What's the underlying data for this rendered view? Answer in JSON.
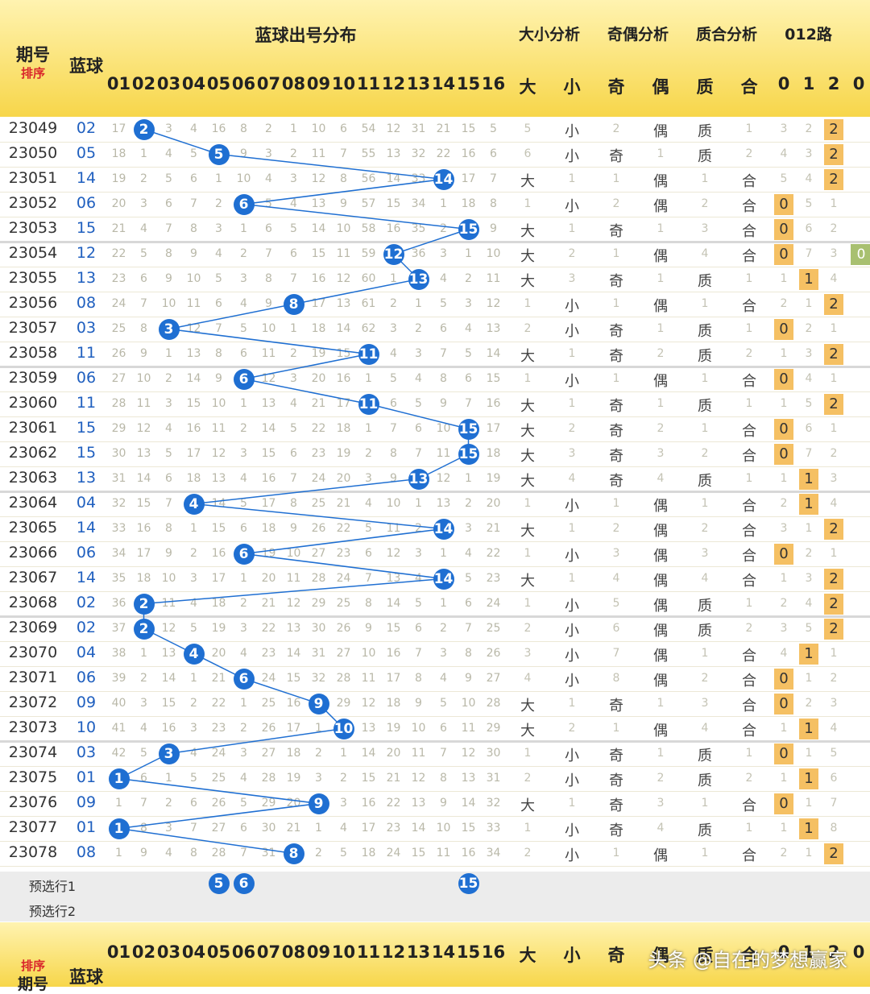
{
  "header": {
    "period_label": "期号",
    "sort_label": "排序",
    "blue_label": "蓝球",
    "distribution_label": "蓝球出号分布",
    "size_label": "大小分析",
    "odd_even_label": "奇偶分析",
    "prime_label": "质合分析",
    "road_label": "012路",
    "numbers": [
      "01",
      "02",
      "03",
      "04",
      "05",
      "06",
      "07",
      "08",
      "09",
      "10",
      "11",
      "12",
      "13",
      "14",
      "15",
      "16"
    ],
    "big": "大",
    "small": "小",
    "odd": "奇",
    "even": "偶",
    "prime": "质",
    "composite": "合",
    "road0": "0",
    "road1": "1",
    "road2": "2",
    "road0b": "0"
  },
  "rows": [
    {
      "period": "23049",
      "blue": "02",
      "miss": [
        "17",
        "",
        "3",
        "4",
        "16",
        "8",
        "2",
        "1",
        "10",
        "6",
        "54",
        "12",
        "31",
        "21",
        "15",
        "5"
      ],
      "size": [
        "5",
        "小"
      ],
      "oe": [
        "2",
        "偶"
      ],
      "pc": [
        "质",
        "1"
      ],
      "road": [
        "3",
        "2",
        "2"
      ]
    },
    {
      "period": "23050",
      "blue": "05",
      "miss": [
        "18",
        "1",
        "4",
        "5",
        "",
        "9",
        "3",
        "2",
        "11",
        "7",
        "55",
        "13",
        "32",
        "22",
        "16",
        "6"
      ],
      "size": [
        "6",
        "小"
      ],
      "oe": [
        "奇",
        "1"
      ],
      "pc": [
        "质",
        "2"
      ],
      "road": [
        "4",
        "3",
        "2"
      ]
    },
    {
      "period": "23051",
      "blue": "14",
      "miss": [
        "19",
        "2",
        "5",
        "6",
        "1",
        "10",
        "4",
        "3",
        "12",
        "8",
        "56",
        "14",
        "33",
        "",
        "17",
        "7"
      ],
      "size": [
        "大",
        "1"
      ],
      "oe": [
        "1",
        "偶"
      ],
      "pc": [
        "1",
        "合"
      ],
      "road": [
        "5",
        "4",
        "2"
      ]
    },
    {
      "period": "23052",
      "blue": "06",
      "miss": [
        "20",
        "3",
        "6",
        "7",
        "2",
        "",
        "5",
        "4",
        "13",
        "9",
        "57",
        "15",
        "34",
        "1",
        "18",
        "8"
      ],
      "size": [
        "1",
        "小"
      ],
      "oe": [
        "2",
        "偶"
      ],
      "pc": [
        "2",
        "合"
      ],
      "road": [
        "0",
        "5",
        "1"
      ]
    },
    {
      "period": "23053",
      "blue": "15",
      "miss": [
        "21",
        "4",
        "7",
        "8",
        "3",
        "1",
        "6",
        "5",
        "14",
        "10",
        "58",
        "16",
        "35",
        "2",
        "",
        "9"
      ],
      "size": [
        "大",
        "1"
      ],
      "oe": [
        "奇",
        "1"
      ],
      "pc": [
        "3",
        "合"
      ],
      "road": [
        "0",
        "6",
        "2"
      ]
    },
    {
      "period": "23054",
      "blue": "12",
      "miss": [
        "22",
        "5",
        "8",
        "9",
        "4",
        "2",
        "7",
        "6",
        "15",
        "11",
        "59",
        "",
        "36",
        "3",
        "1",
        "10"
      ],
      "size": [
        "大",
        "2"
      ],
      "oe": [
        "1",
        "偶"
      ],
      "pc": [
        "4",
        "合"
      ],
      "road": [
        "0",
        "7",
        "3"
      ]
    },
    {
      "period": "23055",
      "blue": "13",
      "miss": [
        "23",
        "6",
        "9",
        "10",
        "5",
        "3",
        "8",
        "7",
        "16",
        "12",
        "60",
        "1",
        "",
        "4",
        "2",
        "11"
      ],
      "size": [
        "大",
        "3"
      ],
      "oe": [
        "奇",
        "1"
      ],
      "pc": [
        "质",
        "1"
      ],
      "road": [
        "1",
        "1",
        "4"
      ]
    },
    {
      "period": "23056",
      "blue": "08",
      "miss": [
        "24",
        "7",
        "10",
        "11",
        "6",
        "4",
        "9",
        "",
        "17",
        "13",
        "61",
        "2",
        "1",
        "5",
        "3",
        "12"
      ],
      "size": [
        "1",
        "小"
      ],
      "oe": [
        "1",
        "偶"
      ],
      "pc": [
        "1",
        "合"
      ],
      "road": [
        "2",
        "1",
        "2"
      ]
    },
    {
      "period": "23057",
      "blue": "03",
      "miss": [
        "25",
        "8",
        "",
        "12",
        "7",
        "5",
        "10",
        "1",
        "18",
        "14",
        "62",
        "3",
        "2",
        "6",
        "4",
        "13"
      ],
      "size": [
        "2",
        "小"
      ],
      "oe": [
        "奇",
        "1"
      ],
      "pc": [
        "质",
        "1"
      ],
      "road": [
        "0",
        "2",
        "1"
      ]
    },
    {
      "period": "23058",
      "blue": "11",
      "miss": [
        "26",
        "9",
        "1",
        "13",
        "8",
        "6",
        "11",
        "2",
        "19",
        "15",
        "",
        "4",
        "3",
        "7",
        "5",
        "14"
      ],
      "size": [
        "大",
        "1"
      ],
      "oe": [
        "奇",
        "2"
      ],
      "pc": [
        "质",
        "2"
      ],
      "road": [
        "1",
        "3",
        "2"
      ]
    },
    {
      "period": "23059",
      "blue": "06",
      "miss": [
        "27",
        "10",
        "2",
        "14",
        "9",
        "",
        "12",
        "3",
        "20",
        "16",
        "1",
        "5",
        "4",
        "8",
        "6",
        "15"
      ],
      "size": [
        "1",
        "小"
      ],
      "oe": [
        "1",
        "偶"
      ],
      "pc": [
        "1",
        "合"
      ],
      "road": [
        "0",
        "4",
        "1"
      ]
    },
    {
      "period": "23060",
      "blue": "11",
      "miss": [
        "28",
        "11",
        "3",
        "15",
        "10",
        "1",
        "13",
        "4",
        "21",
        "17",
        "",
        "6",
        "5",
        "9",
        "7",
        "16"
      ],
      "size": [
        "大",
        "1"
      ],
      "oe": [
        "奇",
        "1"
      ],
      "pc": [
        "质",
        "1"
      ],
      "road": [
        "1",
        "5",
        "2"
      ]
    },
    {
      "period": "23061",
      "blue": "15",
      "miss": [
        "29",
        "12",
        "4",
        "16",
        "11",
        "2",
        "14",
        "5",
        "22",
        "18",
        "1",
        "7",
        "6",
        "10",
        "",
        "17"
      ],
      "size": [
        "大",
        "2"
      ],
      "oe": [
        "奇",
        "2"
      ],
      "pc": [
        "1",
        "合"
      ],
      "road": [
        "0",
        "6",
        "1"
      ]
    },
    {
      "period": "23062",
      "blue": "15",
      "miss": [
        "30",
        "13",
        "5",
        "17",
        "12",
        "3",
        "15",
        "6",
        "23",
        "19",
        "2",
        "8",
        "7",
        "11",
        "",
        "18"
      ],
      "size": [
        "大",
        "3"
      ],
      "oe": [
        "奇",
        "3"
      ],
      "pc": [
        "2",
        "合"
      ],
      "road": [
        "0",
        "7",
        "2"
      ]
    },
    {
      "period": "23063",
      "blue": "13",
      "miss": [
        "31",
        "14",
        "6",
        "18",
        "13",
        "4",
        "16",
        "7",
        "24",
        "20",
        "3",
        "9",
        "",
        "12",
        "1",
        "19"
      ],
      "size": [
        "大",
        "4"
      ],
      "oe": [
        "奇",
        "4"
      ],
      "pc": [
        "质",
        "1"
      ],
      "road": [
        "1",
        "1",
        "3"
      ]
    },
    {
      "period": "23064",
      "blue": "04",
      "miss": [
        "32",
        "15",
        "7",
        "",
        "14",
        "5",
        "17",
        "8",
        "25",
        "21",
        "4",
        "10",
        "1",
        "13",
        "2",
        "20"
      ],
      "size": [
        "1",
        "小"
      ],
      "oe": [
        "1",
        "偶"
      ],
      "pc": [
        "1",
        "合"
      ],
      "road": [
        "2",
        "1",
        "4"
      ]
    },
    {
      "period": "23065",
      "blue": "14",
      "miss": [
        "33",
        "16",
        "8",
        "1",
        "15",
        "6",
        "18",
        "9",
        "26",
        "22",
        "5",
        "11",
        "2",
        "",
        "3",
        "21"
      ],
      "size": [
        "大",
        "1"
      ],
      "oe": [
        "2",
        "偶"
      ],
      "pc": [
        "2",
        "合"
      ],
      "road": [
        "3",
        "1",
        "2"
      ]
    },
    {
      "period": "23066",
      "blue": "06",
      "miss": [
        "34",
        "17",
        "9",
        "2",
        "16",
        "",
        "19",
        "10",
        "27",
        "23",
        "6",
        "12",
        "3",
        "1",
        "4",
        "22"
      ],
      "size": [
        "1",
        "小"
      ],
      "oe": [
        "3",
        "偶"
      ],
      "pc": [
        "3",
        "合"
      ],
      "road": [
        "0",
        "2",
        "1"
      ]
    },
    {
      "period": "23067",
      "blue": "14",
      "miss": [
        "35",
        "18",
        "10",
        "3",
        "17",
        "1",
        "20",
        "11",
        "28",
        "24",
        "7",
        "13",
        "4",
        "",
        "5",
        "23"
      ],
      "size": [
        "大",
        "1"
      ],
      "oe": [
        "4",
        "偶"
      ],
      "pc": [
        "4",
        "合"
      ],
      "road": [
        "1",
        "3",
        "2"
      ]
    },
    {
      "period": "23068",
      "blue": "02",
      "miss": [
        "36",
        "",
        "11",
        "4",
        "18",
        "2",
        "21",
        "12",
        "29",
        "25",
        "8",
        "14",
        "5",
        "1",
        "6",
        "24"
      ],
      "size": [
        "1",
        "小"
      ],
      "oe": [
        "5",
        "偶"
      ],
      "pc": [
        "质",
        "1"
      ],
      "road": [
        "2",
        "4",
        "2"
      ]
    },
    {
      "period": "23069",
      "blue": "02",
      "miss": [
        "37",
        "",
        "12",
        "5",
        "19",
        "3",
        "22",
        "13",
        "30",
        "26",
        "9",
        "15",
        "6",
        "2",
        "7",
        "25"
      ],
      "size": [
        "2",
        "小"
      ],
      "oe": [
        "6",
        "偶"
      ],
      "pc": [
        "质",
        "2"
      ],
      "road": [
        "3",
        "5",
        "2"
      ]
    },
    {
      "period": "23070",
      "blue": "04",
      "miss": [
        "38",
        "1",
        "13",
        "",
        "20",
        "4",
        "23",
        "14",
        "31",
        "27",
        "10",
        "16",
        "7",
        "3",
        "8",
        "26"
      ],
      "size": [
        "3",
        "小"
      ],
      "oe": [
        "7",
        "偶"
      ],
      "pc": [
        "1",
        "合"
      ],
      "road": [
        "4",
        "1",
        "1"
      ]
    },
    {
      "period": "23071",
      "blue": "06",
      "miss": [
        "39",
        "2",
        "14",
        "1",
        "21",
        "",
        "24",
        "15",
        "32",
        "28",
        "11",
        "17",
        "8",
        "4",
        "9",
        "27"
      ],
      "size": [
        "4",
        "小"
      ],
      "oe": [
        "8",
        "偶"
      ],
      "pc": [
        "2",
        "合"
      ],
      "road": [
        "0",
        "1",
        "2"
      ]
    },
    {
      "period": "23072",
      "blue": "09",
      "miss": [
        "40",
        "3",
        "15",
        "2",
        "22",
        "1",
        "25",
        "16",
        "",
        "29",
        "12",
        "18",
        "9",
        "5",
        "10",
        "28"
      ],
      "size": [
        "大",
        "1"
      ],
      "oe": [
        "奇",
        "1"
      ],
      "pc": [
        "3",
        "合"
      ],
      "road": [
        "0",
        "2",
        "3"
      ]
    },
    {
      "period": "23073",
      "blue": "10",
      "miss": [
        "41",
        "4",
        "16",
        "3",
        "23",
        "2",
        "26",
        "17",
        "1",
        "",
        "13",
        "19",
        "10",
        "6",
        "11",
        "29"
      ],
      "size": [
        "大",
        "2"
      ],
      "oe": [
        "1",
        "偶"
      ],
      "pc": [
        "4",
        "合"
      ],
      "road": [
        "1",
        "1",
        "4"
      ]
    },
    {
      "period": "23074",
      "blue": "03",
      "miss": [
        "42",
        "5",
        "",
        "4",
        "24",
        "3",
        "27",
        "18",
        "2",
        "1",
        "14",
        "20",
        "11",
        "7",
        "12",
        "30"
      ],
      "size": [
        "1",
        "小"
      ],
      "oe": [
        "奇",
        "1"
      ],
      "pc": [
        "质",
        "1"
      ],
      "road": [
        "0",
        "1",
        "5"
      ]
    },
    {
      "period": "23075",
      "blue": "01",
      "miss": [
        "",
        "6",
        "1",
        "5",
        "25",
        "4",
        "28",
        "19",
        "3",
        "2",
        "15",
        "21",
        "12",
        "8",
        "13",
        "31"
      ],
      "size": [
        "2",
        "小"
      ],
      "oe": [
        "奇",
        "2"
      ],
      "pc": [
        "质",
        "2"
      ],
      "road": [
        "1",
        "1",
        "6"
      ]
    },
    {
      "period": "23076",
      "blue": "09",
      "miss": [
        "1",
        "7",
        "2",
        "6",
        "26",
        "5",
        "29",
        "20",
        "",
        "3",
        "16",
        "22",
        "13",
        "9",
        "14",
        "32"
      ],
      "size": [
        "大",
        "1"
      ],
      "oe": [
        "奇",
        "3"
      ],
      "pc": [
        "1",
        "合"
      ],
      "road": [
        "0",
        "1",
        "7"
      ]
    },
    {
      "period": "23077",
      "blue": "01",
      "miss": [
        "",
        "8",
        "3",
        "7",
        "27",
        "6",
        "30",
        "21",
        "1",
        "4",
        "17",
        "23",
        "14",
        "10",
        "15",
        "33"
      ],
      "size": [
        "1",
        "小"
      ],
      "oe": [
        "奇",
        "4"
      ],
      "pc": [
        "质",
        "1"
      ],
      "road": [
        "1",
        "1",
        "8"
      ]
    },
    {
      "period": "23078",
      "blue": "08",
      "miss": [
        "1",
        "9",
        "4",
        "8",
        "28",
        "7",
        "31",
        "",
        "2",
        "5",
        "18",
        "24",
        "15",
        "11",
        "16",
        "34"
      ],
      "size": [
        "2",
        "小"
      ],
      "oe": [
        "1",
        "偶"
      ],
      "pc": [
        "1",
        "合"
      ],
      "road": [
        "2",
        "1",
        "2"
      ]
    }
  ],
  "preselect": {
    "row1_label": "预选行1",
    "row2_label": "预选行2",
    "row1_balls": [
      "5",
      "6",
      "15"
    ]
  },
  "watermark": "头条 @自在的梦想赢家",
  "colors": {
    "ball": "#1f6fd2",
    "header": "#f7d64a",
    "road_hit": "#f5c063",
    "green": "#a8c070",
    "blue_text": "#1f5fbf"
  }
}
